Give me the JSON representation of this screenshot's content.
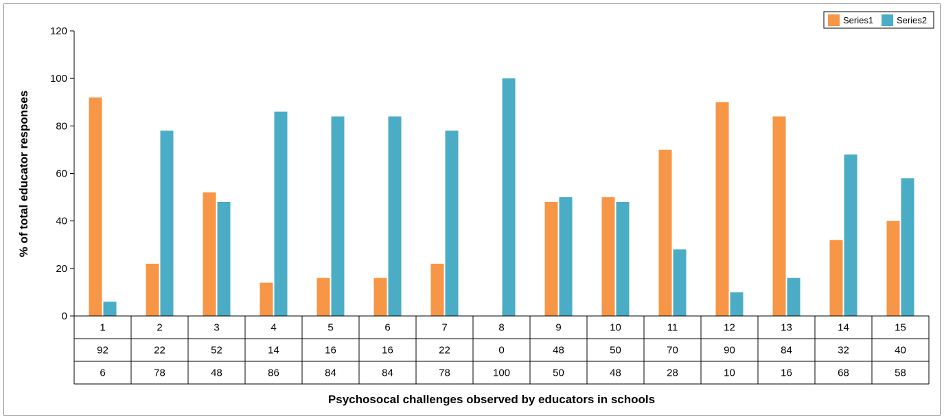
{
  "chart_data": {
    "type": "bar",
    "title": "",
    "xlabel": "Psychosocal challenges observed by educators in schools",
    "ylabel": "% of total educator responses",
    "ylim": [
      0,
      120
    ],
    "yticks": [
      0,
      20,
      40,
      60,
      80,
      100,
      120
    ],
    "categories": [
      "1",
      "2",
      "3",
      "4",
      "5",
      "6",
      "7",
      "8",
      "9",
      "10",
      "11",
      "12",
      "13",
      "14",
      "15"
    ],
    "series": [
      {
        "name": "Series1",
        "color": "#f79646",
        "values": [
          92,
          22,
          52,
          14,
          16,
          16,
          22,
          0,
          48,
          50,
          70,
          90,
          84,
          32,
          40
        ]
      },
      {
        "name": "Series2",
        "color": "#4bacc6",
        "values": [
          6,
          78,
          48,
          86,
          84,
          84,
          78,
          100,
          50,
          48,
          28,
          10,
          16,
          68,
          58
        ]
      }
    ],
    "grid": false,
    "legend_position": "top-right",
    "data_table": true
  }
}
